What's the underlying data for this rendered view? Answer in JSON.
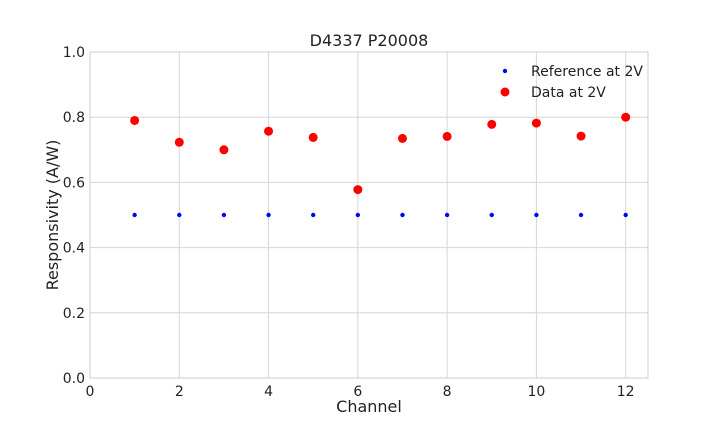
{
  "chart_data": {
    "type": "scatter",
    "title": "D4337 P20008",
    "xlabel": "Channel",
    "ylabel": "Responsivity (A/W)",
    "xlim": [
      0,
      12.5
    ],
    "ylim": [
      0,
      1.0
    ],
    "xticks": [
      0,
      2,
      4,
      6,
      8,
      10,
      12
    ],
    "yticks": [
      0.0,
      0.2,
      0.4,
      0.6,
      0.8,
      1.0
    ],
    "xtick_labels": [
      "0",
      "2",
      "4",
      "6",
      "8",
      "10",
      "12"
    ],
    "ytick_labels": [
      "0.0",
      "0.2",
      "0.4",
      "0.6",
      "0.8",
      "1.0"
    ],
    "grid": true,
    "legend_position": "top-right",
    "series": [
      {
        "name": "Reference at 2V",
        "color": "#0000ff",
        "marker": "small-dot",
        "x": [
          1,
          2,
          3,
          4,
          5,
          6,
          7,
          8,
          9,
          10,
          11,
          12
        ],
        "y": [
          0.5,
          0.5,
          0.5,
          0.5,
          0.5,
          0.5,
          0.5,
          0.5,
          0.5,
          0.5,
          0.5,
          0.5
        ]
      },
      {
        "name": "Data at 2V",
        "color": "#ff0000",
        "marker": "large-dot",
        "x": [
          1,
          2,
          3,
          4,
          5,
          6,
          7,
          8,
          9,
          10,
          11,
          12
        ],
        "y": [
          0.79,
          0.723,
          0.7,
          0.757,
          0.738,
          0.578,
          0.735,
          0.741,
          0.778,
          0.782,
          0.742,
          0.8
        ]
      }
    ]
  }
}
